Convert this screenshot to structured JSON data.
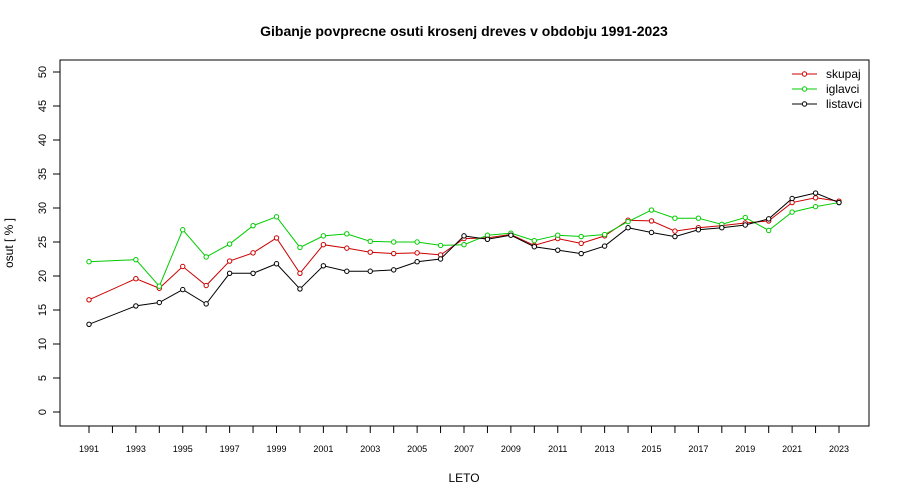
{
  "chart_data": {
    "type": "line",
    "title": "Gibanje povprecne osuti krosenj dreves v obdobju 1991-2023",
    "xlabel": "LETO",
    "ylabel": "osut [ % ]",
    "ylim": [
      0,
      50
    ],
    "y_ticks": [
      0,
      5,
      10,
      15,
      20,
      25,
      30,
      35,
      40,
      45,
      50
    ],
    "x_ticks": [
      1991,
      1993,
      1995,
      1997,
      1999,
      2001,
      2003,
      2005,
      2007,
      2009,
      2011,
      2013,
      2015,
      2017,
      2019,
      2021,
      2023
    ],
    "grid": false,
    "legend_position": "top-right",
    "x": [
      1991,
      1993,
      1994,
      1995,
      1996,
      1997,
      1998,
      1999,
      2000,
      2001,
      2002,
      2003,
      2004,
      2005,
      2006,
      2007,
      2008,
      2009,
      2010,
      2011,
      2012,
      2013,
      2014,
      2015,
      2016,
      2017,
      2018,
      2019,
      2020,
      2021,
      2022,
      2023
    ],
    "series": [
      {
        "name": "skupaj",
        "color": "#cc0000",
        "values": [
          16.5,
          19.6,
          18.2,
          21.4,
          18.6,
          22.2,
          23.4,
          25.6,
          20.4,
          24.6,
          24.1,
          23.5,
          23.3,
          23.4,
          23.1,
          25.5,
          25.6,
          26.1,
          24.5,
          25.5,
          24.8,
          25.9,
          28.2,
          28.1,
          26.6,
          27.1,
          27.4,
          27.8,
          28.1,
          30.8,
          31.5,
          31.0
        ]
      },
      {
        "name": "iglavci",
        "color": "#00cc00",
        "values": [
          22.1,
          22.4,
          18.5,
          26.8,
          22.8,
          24.7,
          27.4,
          28.7,
          24.2,
          25.9,
          26.2,
          25.1,
          25.0,
          25.0,
          24.5,
          24.6,
          26.0,
          26.3,
          25.2,
          26.0,
          25.8,
          26.1,
          28.0,
          29.7,
          28.5,
          28.5,
          27.6,
          28.6,
          26.7,
          29.4,
          30.2,
          30.8
        ]
      },
      {
        "name": "listavci",
        "color": "#000000",
        "values": [
          12.9,
          15.6,
          16.1,
          18.0,
          15.9,
          20.4,
          20.4,
          21.8,
          18.1,
          21.5,
          20.7,
          20.7,
          20.9,
          22.1,
          22.5,
          25.9,
          25.4,
          26.0,
          24.3,
          23.8,
          23.3,
          24.4,
          27.1,
          26.4,
          25.8,
          26.8,
          27.1,
          27.5,
          28.4,
          31.4,
          32.2,
          30.8
        ]
      }
    ]
  }
}
